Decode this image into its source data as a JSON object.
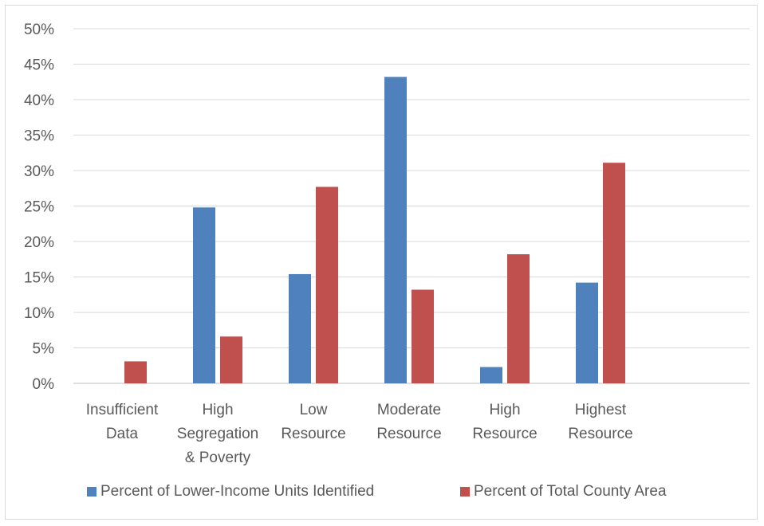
{
  "chart_data": {
    "type": "bar",
    "title": "",
    "xlabel": "",
    "ylabel": "",
    "categories": [
      [
        "Insufficient",
        "Data"
      ],
      [
        "High",
        "Segregation",
        "& Poverty"
      ],
      [
        "Low",
        "Resource"
      ],
      [
        "Moderate",
        "Resource"
      ],
      [
        "High",
        "Resource"
      ],
      [
        "Highest",
        "Resource"
      ]
    ],
    "series": [
      {
        "name": "Percent of Lower-Income Units Identified",
        "color": "#4f81bd",
        "values": [
          0,
          24.8,
          15.4,
          43.2,
          2.3,
          14.2
        ]
      },
      {
        "name": "Percent of Total County Area",
        "color": "#c0504d",
        "values": [
          3.1,
          6.6,
          27.7,
          13.2,
          18.2,
          31.1
        ]
      }
    ],
    "ylim": [
      0,
      50
    ],
    "ytick_step": 5,
    "ytick_format": "percent",
    "grid": true,
    "legend_position": "bottom"
  }
}
